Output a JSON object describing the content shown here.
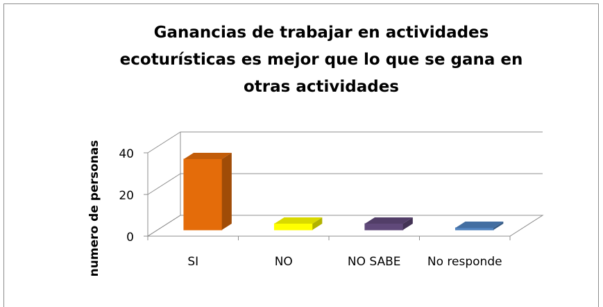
{
  "chart_data": {
    "type": "bar3d",
    "title": "Ganancias de trabajar en actividades ecoturísticas es mejor que lo que se gana en otras actividades",
    "y_label": "numero de personas",
    "categories": [
      "SI",
      "NO",
      "NO SABE",
      "No responde"
    ],
    "values": [
      34,
      3,
      3,
      1
    ],
    "colors": [
      "#e46c0a",
      "#ffff00",
      "#60497a",
      "#4f81bd"
    ],
    "ylim": [
      0,
      40
    ],
    "yticks": [
      0,
      20,
      40
    ],
    "grid": true
  }
}
